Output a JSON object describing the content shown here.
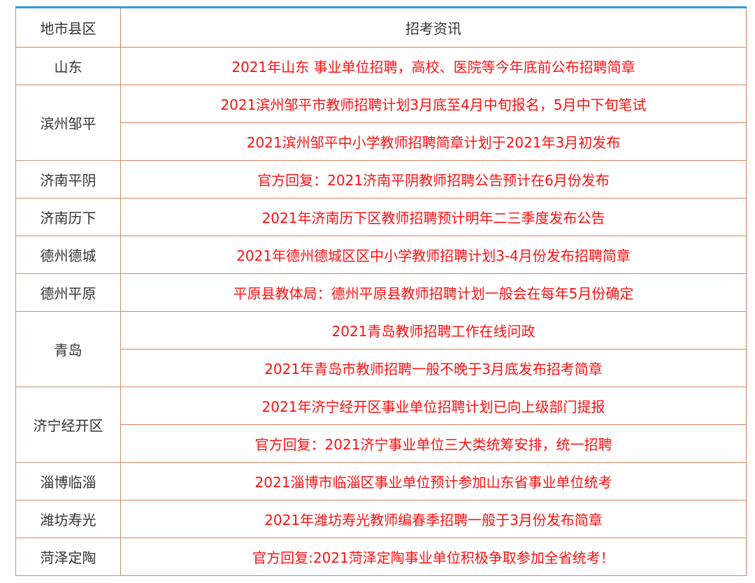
{
  "header": {
    "region": "地市县区",
    "info": "招考资讯"
  },
  "colors": {
    "accent_border": "#2a9bd6",
    "grid": "#d4825c",
    "info_text": "#ff1010"
  },
  "rows": [
    {
      "region": "山东",
      "items": [
        "2021年山东 事业单位招聘，高校、医院等今年底前公布招聘简章"
      ]
    },
    {
      "region": "滨州邹平",
      "items": [
        "2021滨州邹平市教师招聘计划3月底至4月中旬报名，5月中下旬笔试",
        "2021滨州邹平中小学教师招聘简章计划于2021年3月初发布"
      ]
    },
    {
      "region": "济南平阴",
      "items": [
        "官方回复：2021济南平阴教师招聘公告预计在6月份发布"
      ]
    },
    {
      "region": "济南历下",
      "items": [
        "2021年济南历下区教师招聘预计明年二三季度发布公告"
      ]
    },
    {
      "region": "德州德城",
      "items": [
        "2021年德州德城区区中小学教师招聘计划3-4月份发布招聘简章"
      ]
    },
    {
      "region": "德州平原",
      "items": [
        "平原县教体局：德州平原县教师招聘计划一般会在每年5月份确定"
      ]
    },
    {
      "region": "青岛",
      "items": [
        "2021青岛教师招聘工作在线问政",
        "2021年青岛市教师招聘一般不晚于3月底发布招考简章"
      ]
    },
    {
      "region": "济宁经开区",
      "items": [
        "2021年济宁经开区事业单位招聘计划已向上级部门提报",
        "官方回复：2021济宁事业单位三大类统筹安排，统一招聘"
      ]
    },
    {
      "region": "淄博临淄",
      "items": [
        "2021淄博市临淄区事业单位预计参加山东省事业单位统考"
      ]
    },
    {
      "region": "潍坊寿光",
      "items": [
        "2021年潍坊寿光教师编春季招聘一般于3月份发布简章"
      ]
    },
    {
      "region": "菏泽定陶",
      "items": [
        "官方回复:2021菏泽定陶事业单位积极争取参加全省统考！"
      ]
    }
  ]
}
